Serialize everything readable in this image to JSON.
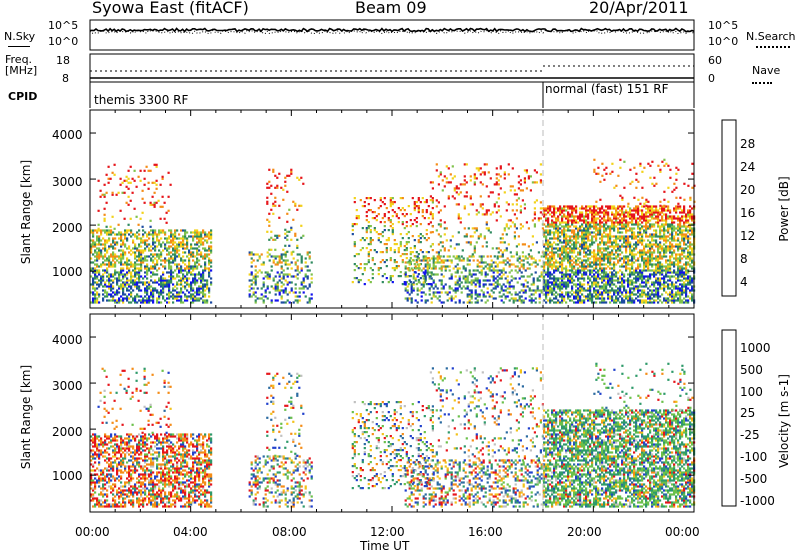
{
  "header": {
    "title": "Syowa East (fitACF)",
    "beam": "Beam 09",
    "date": "20/Apr/2011"
  },
  "noise_panel": {
    "left_label": "N.Sky",
    "right_label": "N.Search",
    "left_ticks": [
      "10^5",
      "10^0"
    ],
    "right_ticks": [
      "10^5",
      "10^0"
    ]
  },
  "freq_panel": {
    "left_label_1": "Freq.",
    "left_label_2": "[MHz]",
    "left_ticks": [
      "18",
      "8"
    ],
    "right_ticks": [
      "60",
      "0"
    ],
    "right_label": "Nave"
  },
  "cpid_panel": {
    "label": "CPID",
    "segments": [
      {
        "text": "themis 3300 RF",
        "start_hour": 0
      },
      {
        "text": "normal (fast) 151 RF",
        "start_hour": 18
      }
    ]
  },
  "power_panel": {
    "ylabel": "Slant Range [km]",
    "yticks": [
      "4000",
      "3000",
      "2000",
      "1000"
    ],
    "colorbar_label": "Power [dB]",
    "colorbar_ticks": [
      "28",
      "24",
      "20",
      "16",
      "12",
      "8",
      "4"
    ],
    "colors": [
      "#1010ee",
      "#1a4aa0",
      "#2f8a5f",
      "#7fc24b",
      "#f2d21a",
      "#f48c16",
      "#e6141a"
    ]
  },
  "velocity_panel": {
    "ylabel": "Slant Range [km]",
    "yticks": [
      "4000",
      "3000",
      "2000",
      "1000"
    ],
    "colorbar_label": "Velocity [m s-1]",
    "colorbar_ticks": [
      "1000",
      "500",
      "100",
      "25",
      "-25",
      "-100",
      "-500",
      "-1000"
    ],
    "colors": [
      "#2040cc",
      "#2a6aa0",
      "#2e9a6a",
      "#6ac04a",
      "#c0c0c0",
      "#f2c21a",
      "#f48c16",
      "#e6141a"
    ]
  },
  "xaxis": {
    "ticks": [
      "00:00",
      "04:00",
      "08:00",
      "12:00",
      "16:00",
      "20:00",
      "00:00"
    ],
    "label": "Time UT"
  },
  "chart_data": {
    "type": "heatmap",
    "title": "Syowa East (fitACF)",
    "x": {
      "label": "Time UT",
      "range_hours": [
        0,
        24
      ],
      "ticks": [
        "00:00",
        "04:00",
        "08:00",
        "12:00",
        "16:00",
        "20:00",
        "00:00"
      ]
    },
    "y": {
      "label": "Slant Range [km]",
      "range_km": [
        200,
        4500
      ],
      "ticks": [
        1000,
        2000,
        3000,
        4000
      ]
    },
    "panels": [
      {
        "name": "Power [dB]",
        "range": [
          0,
          30
        ],
        "ticks": [
          4,
          8,
          12,
          16,
          20,
          24,
          28
        ]
      },
      {
        "name": "Velocity [m s-1]",
        "ticks": [
          1000,
          500,
          100,
          25,
          -25,
          -100,
          -500,
          -1000
        ]
      }
    ],
    "scatter_regions": [
      {
        "t0": 0.0,
        "t1": 4.8,
        "r0": 300,
        "r1": 1900,
        "density": 0.55
      },
      {
        "t0": 0.3,
        "t1": 3.2,
        "r0": 1900,
        "r1": 3300,
        "density": 0.08
      },
      {
        "t0": 6.3,
        "t1": 8.8,
        "r0": 300,
        "r1": 1400,
        "density": 0.3
      },
      {
        "t0": 7.0,
        "t1": 8.5,
        "r0": 1400,
        "r1": 3200,
        "density": 0.12
      },
      {
        "t0": 10.4,
        "t1": 13.6,
        "r0": 700,
        "r1": 2600,
        "density": 0.2
      },
      {
        "t0": 12.5,
        "t1": 18.0,
        "r0": 300,
        "r1": 1300,
        "density": 0.35
      },
      {
        "t0": 13.5,
        "t1": 18.0,
        "r0": 1300,
        "r1": 3300,
        "density": 0.12
      },
      {
        "t0": 18.0,
        "t1": 24.0,
        "r0": 300,
        "r1": 2400,
        "density": 0.65
      },
      {
        "t0": 20.0,
        "t1": 24.0,
        "r0": 2400,
        "r1": 3400,
        "density": 0.07
      }
    ]
  }
}
